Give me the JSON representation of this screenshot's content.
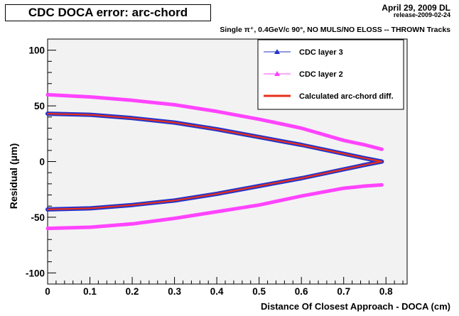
{
  "header": {
    "title": "CDC DOCA error: arc-chord",
    "date": "April 29, 2009 DL",
    "release": "release-2009-02-24",
    "subtitle": "Single π⁺, 0.4GeV/c 90°, NO MULS/NO ELOSS -- THROWN Tracks"
  },
  "chart_data": {
    "type": "scatter",
    "xlabel": "Distance Of Closest Approach - DOCA (cm)",
    "ylabel": "Residual (μm)",
    "xlim": [
      0,
      0.85
    ],
    "ylim": [
      -110,
      110
    ],
    "x_ticks": [
      "0",
      "0.1",
      "0.2",
      "0.3",
      "0.4",
      "0.5",
      "0.6",
      "0.7",
      "0.8"
    ],
    "y_ticks": [
      "-100",
      "-50",
      "0",
      "50",
      "100"
    ],
    "grid": false,
    "legend_position": "top-right",
    "x": [
      0,
      0.1,
      0.2,
      0.3,
      0.4,
      0.5,
      0.6,
      0.7,
      0.75,
      0.79
    ],
    "series": [
      {
        "name": "CDC layer 3",
        "color": "#2233cc",
        "marker": "triangle",
        "upper": [
          43,
          42,
          39,
          35,
          29,
          22,
          15,
          7,
          3,
          0
        ],
        "lower": [
          -43,
          -42,
          -39,
          -35,
          -29,
          -22,
          -15,
          -7,
          -3,
          0
        ]
      },
      {
        "name": "CDC layer 2",
        "color": "#ff44ff",
        "marker": "triangle",
        "upper": [
          60,
          58,
          55,
          51,
          45,
          38,
          30,
          19,
          15,
          11
        ],
        "lower": [
          -60,
          -59,
          -56,
          -51,
          -45,
          -39,
          -31,
          -24,
          -22,
          -21
        ]
      },
      {
        "name": "Calculated arc-chord diff.",
        "color": "#e8301a",
        "marker": "line",
        "upper": [
          43,
          42,
          39,
          35,
          29,
          22,
          15,
          7,
          3,
          0
        ],
        "lower": [
          -43,
          -42,
          -39,
          -35,
          -29,
          -22,
          -15,
          -7,
          -3,
          0
        ]
      }
    ]
  }
}
